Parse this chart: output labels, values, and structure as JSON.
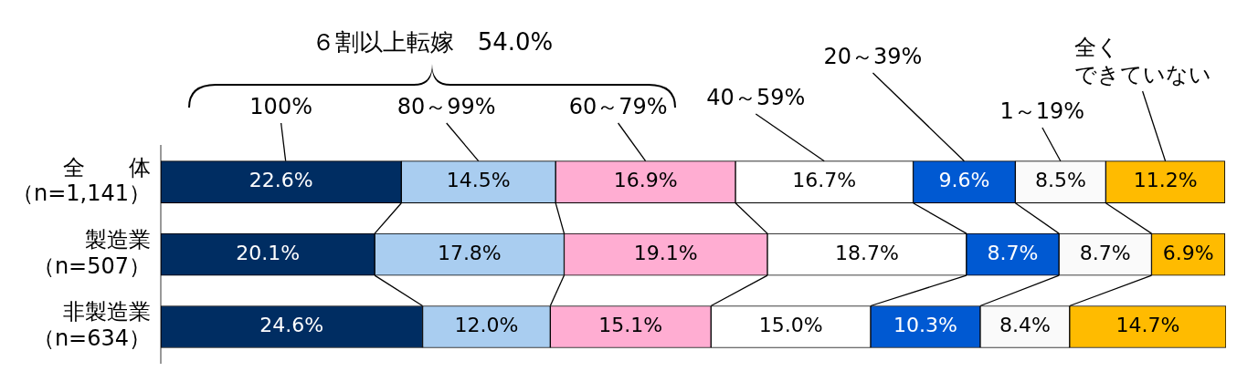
{
  "chart_data": {
    "type": "bar",
    "orientation": "horizontal",
    "stacked": true,
    "categories": [
      "全　　体（n=1,141）",
      "製造業（n=507）",
      "非製造業（n=634）"
    ],
    "series": [
      {
        "name": "100%",
        "color": "#002d62",
        "values": [
          22.6,
          20.1,
          24.6
        ],
        "value_labels": [
          "22.6%",
          "20.1%",
          "24.6%"
        ]
      },
      {
        "name": "80～99%",
        "color": "#a9cdf0",
        "values": [
          14.5,
          17.8,
          12.0
        ],
        "value_labels": [
          "14.5%",
          "17.8%",
          "12.0%"
        ]
      },
      {
        "name": "60～79%",
        "color": "#ffadd2",
        "values": [
          16.9,
          19.1,
          15.1
        ],
        "value_labels": [
          "16.9%",
          "19.1%",
          "15.1%"
        ]
      },
      {
        "name": "40～59%",
        "color": "#ffffff",
        "values": [
          16.7,
          18.7,
          15.0
        ],
        "value_labels": [
          "16.7%",
          "18.7%",
          "15.0%"
        ]
      },
      {
        "name": "20～39%",
        "color": "#0059d2",
        "values": [
          9.6,
          8.7,
          10.3
        ],
        "value_labels": [
          "9.6%",
          "8.7%",
          "10.3%"
        ]
      },
      {
        "name": "1～19%",
        "color": "#fafafa",
        "values": [
          8.5,
          8.7,
          8.4
        ],
        "value_labels": [
          "8.5%",
          "8.7%",
          "8.4%"
        ]
      },
      {
        "name": "全くできていない",
        "color": "#ffbb00",
        "values": [
          11.2,
          6.9,
          14.7
        ],
        "value_labels": [
          "11.2%",
          "6.9%",
          "14.7%"
        ]
      }
    ],
    "tick_labels": "y",
    "annotations": [
      "６割以上転嫁　54.0%"
    ]
  }
}
